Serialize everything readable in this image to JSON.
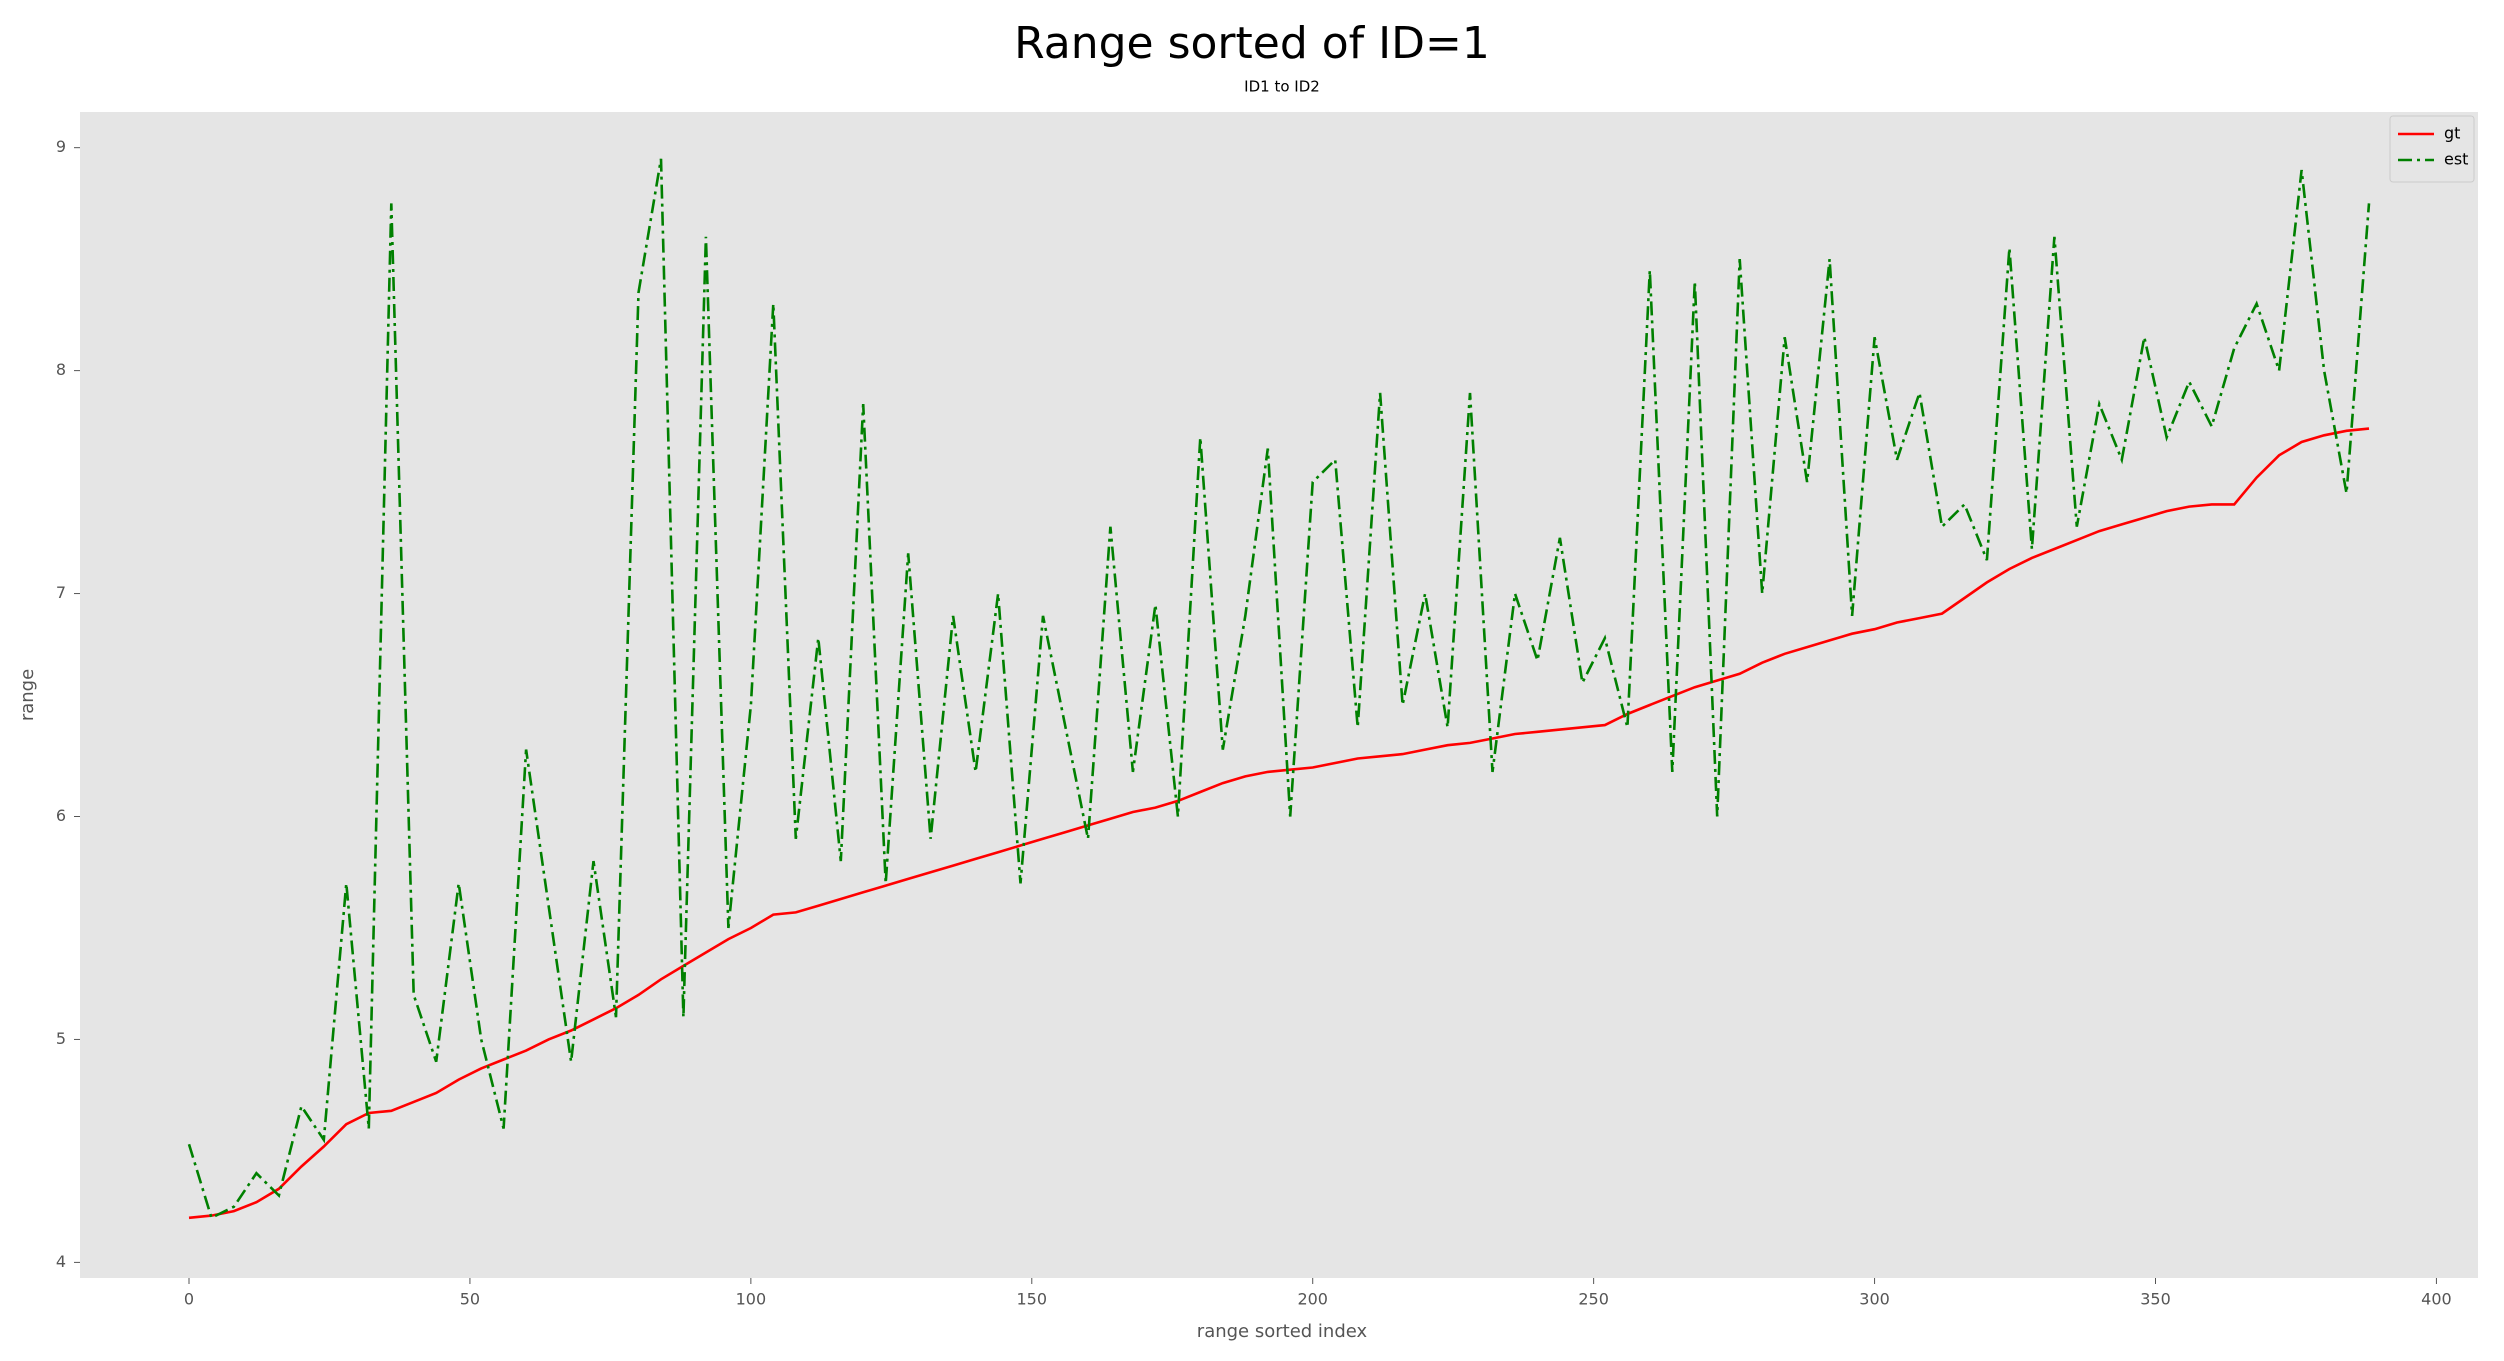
{
  "chart_data": {
    "type": "line",
    "title": "Range sorted of ID=1",
    "subtitle": "ID1 to ID2",
    "x_label": "range sorted index",
    "y_label": "range",
    "x": [
      0,
      4,
      8,
      12,
      16,
      20,
      24,
      28,
      32,
      36,
      40,
      44,
      48,
      52,
      56,
      60,
      64,
      68,
      72,
      76,
      80,
      84,
      88,
      92,
      96,
      100,
      104,
      108,
      112,
      116,
      120,
      124,
      128,
      132,
      136,
      140,
      144,
      148,
      152,
      156,
      160,
      164,
      168,
      172,
      176,
      180,
      184,
      188,
      192,
      196,
      200,
      204,
      208,
      212,
      216,
      220,
      224,
      228,
      232,
      236,
      240,
      244,
      248,
      252,
      256,
      260,
      264,
      268,
      272,
      276,
      280,
      284,
      288,
      292,
      296,
      300,
      304,
      308,
      312,
      316,
      320,
      324,
      328,
      332,
      336,
      340,
      344,
      348,
      352,
      356,
      360,
      364,
      368,
      372,
      376,
      380,
      384,
      388
    ],
    "series": [
      {
        "name": "gt",
        "color": "#ff0000",
        "dash": "solid",
        "values": [
          4.2,
          4.21,
          4.23,
          4.27,
          4.33,
          4.43,
          4.52,
          4.62,
          4.67,
          4.68,
          4.72,
          4.76,
          4.82,
          4.87,
          4.91,
          4.95,
          5.0,
          5.04,
          5.09,
          5.14,
          5.2,
          5.27,
          5.33,
          5.39,
          5.45,
          5.5,
          5.56,
          5.57,
          5.6,
          5.63,
          5.66,
          5.69,
          5.72,
          5.75,
          5.78,
          5.81,
          5.84,
          5.87,
          5.9,
          5.93,
          5.96,
          5.99,
          6.02,
          6.04,
          6.07,
          6.11,
          6.15,
          6.18,
          6.2,
          6.21,
          6.22,
          6.24,
          6.26,
          6.27,
          6.28,
          6.3,
          6.32,
          6.33,
          6.35,
          6.37,
          6.38,
          6.39,
          6.4,
          6.41,
          6.46,
          6.5,
          6.54,
          6.58,
          6.61,
          6.64,
          6.69,
          6.73,
          6.76,
          6.79,
          6.82,
          6.84,
          6.87,
          6.89,
          6.91,
          6.98,
          7.05,
          7.11,
          7.16,
          7.2,
          7.24,
          7.28,
          7.31,
          7.34,
          7.37,
          7.39,
          7.4,
          7.4,
          7.52,
          7.62,
          7.68,
          7.71,
          7.73,
          7.74
        ]
      },
      {
        "name": "est",
        "color": "#008000",
        "dash": "dashdot",
        "values": [
          4.53,
          4.2,
          4.25,
          4.4,
          4.3,
          4.7,
          4.55,
          5.7,
          4.6,
          8.75,
          5.2,
          4.9,
          5.7,
          5.0,
          4.6,
          6.3,
          5.6,
          4.9,
          5.8,
          5.1,
          8.35,
          8.95,
          5.1,
          8.6,
          5.5,
          6.5,
          8.3,
          5.9,
          6.8,
          5.8,
          7.85,
          5.7,
          7.18,
          5.9,
          6.9,
          6.2,
          7.0,
          5.7,
          6.9,
          6.4,
          5.9,
          7.3,
          6.2,
          6.95,
          6.0,
          7.7,
          6.3,
          6.9,
          7.65,
          6.0,
          7.5,
          7.6,
          6.4,
          7.9,
          6.5,
          7.0,
          6.4,
          7.9,
          6.2,
          7.0,
          6.7,
          7.25,
          6.6,
          6.8,
          6.4,
          8.45,
          6.2,
          8.4,
          6.0,
          8.5,
          7.0,
          8.15,
          7.5,
          8.5,
          6.9,
          8.15,
          7.6,
          7.9,
          7.3,
          7.4,
          7.15,
          8.55,
          7.2,
          8.6,
          7.3,
          7.85,
          7.6,
          8.15,
          7.7,
          7.95,
          7.75,
          8.1,
          8.3,
          8.0,
          8.9,
          8.0,
          7.45,
          8.75
        ]
      }
    ],
    "xlim": [
      -19.4,
      407.4
    ],
    "ylim": [
      3.93,
      9.16
    ],
    "xticks": [
      0,
      50,
      100,
      150,
      200,
      250,
      300,
      350,
      400
    ],
    "yticks": [
      4,
      5,
      6,
      7,
      8,
      9
    ],
    "grid": false,
    "legend": "upper right",
    "background": "#e5e5e5"
  }
}
